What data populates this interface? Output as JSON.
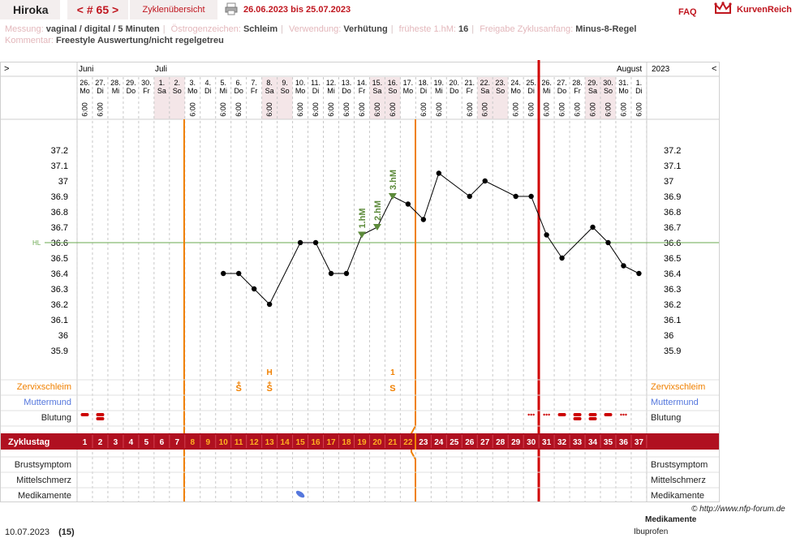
{
  "header": {
    "user": "Hiroka",
    "cycle_nav": "< # 65 >",
    "overview": "Zyklenübersicht",
    "date_range": "26.06.2023 bis 25.07.2023",
    "faq": "FAQ",
    "logo": "KurvenReich"
  },
  "meta": {
    "row1": [
      {
        "label": "Messung:",
        "value": "vaginal / digital / 5 Minuten"
      },
      {
        "label": "Östrogenzeichen:",
        "value": "Schleim"
      },
      {
        "label": "Verwendung:",
        "value": "Verhütung"
      },
      {
        "label": "früheste 1.hM:",
        "value": "16"
      },
      {
        "label": "Freigabe Zyklusanfang:",
        "value": "Minus-8-Regel"
      }
    ],
    "row2": {
      "label": "Kommentar:",
      "value": "Freestyle Auswertung/nicht regelgetreu"
    }
  },
  "chart_data": {
    "type": "line",
    "months": [
      "Juni",
      "Juli",
      "August"
    ],
    "year": "2023",
    "nav_left": ">",
    "nav_right": "<",
    "dates": [
      "26.",
      "27.",
      "28.",
      "29.",
      "30.",
      "1.",
      "2.",
      "3.",
      "4.",
      "5.",
      "6.",
      "7.",
      "8.",
      "9.",
      "10.",
      "11.",
      "12.",
      "13.",
      "14.",
      "15.",
      "16.",
      "17.",
      "18.",
      "19.",
      "20.",
      "21.",
      "22.",
      "23.",
      "24.",
      "25.",
      "26.",
      "27.",
      "28.",
      "29.",
      "30.",
      "31.",
      "1."
    ],
    "weekdays": [
      "Mo",
      "Di",
      "Mi",
      "Do",
      "Fr",
      "Sa",
      "So",
      "Mo",
      "Di",
      "Mi",
      "Do",
      "Fr",
      "Sa",
      "So",
      "Mo",
      "Di",
      "Mi",
      "Do",
      "Fr",
      "Sa",
      "So",
      "Mo",
      "Di",
      "Mi",
      "Do",
      "Fr",
      "Sa",
      "So",
      "Mo",
      "Di",
      "Mi",
      "Do",
      "Fr",
      "Sa",
      "So",
      "Mo",
      "Di"
    ],
    "times": [
      "6:00",
      "6:00",
      "",
      "",
      "",
      "",
      "",
      "6:00",
      "",
      "6:00",
      "6:00",
      "",
      "6:00",
      "",
      "6:00",
      "6:00",
      "6:00",
      "6:00",
      "6:00",
      "6:00",
      "6:00",
      "",
      "6:00",
      "6:00",
      "",
      "6:00",
      "6:00",
      "",
      "6:00",
      "6:00",
      "6:00",
      "6:00",
      "6:00",
      "6:00",
      "6:00",
      "6:00",
      "6:00"
    ],
    "cycle_days": [
      "1",
      "2",
      "3",
      "4",
      "5",
      "6",
      "7",
      "8",
      "9",
      "10",
      "11",
      "12",
      "13",
      "14",
      "15",
      "16",
      "17",
      "18",
      "19",
      "20",
      "21",
      "22",
      "23",
      "24",
      "25",
      "26",
      "27",
      "28",
      "29",
      "30",
      "31",
      "32",
      "33",
      "34",
      "35",
      "36",
      "37"
    ],
    "temperatures": [
      null,
      null,
      null,
      null,
      null,
      null,
      null,
      null,
      null,
      36.4,
      36.4,
      36.3,
      36.2,
      null,
      36.6,
      36.6,
      36.4,
      36.4,
      36.65,
      36.7,
      36.9,
      36.85,
      36.75,
      37.05,
      null,
      36.9,
      37.0,
      null,
      36.9,
      36.9,
      36.65,
      36.5,
      null,
      36.7,
      36.6,
      36.45,
      36.4
    ],
    "y_ticks": [
      "37.2",
      "37.1",
      "37",
      "36.9",
      "36.8",
      "36.7",
      "36.6",
      "36.5",
      "36.4",
      "36.3",
      "36.2",
      "36.1",
      "36",
      "35.9"
    ],
    "ylim": [
      35.9,
      37.2
    ],
    "hl_label": "HL",
    "hl_value": 36.6,
    "hm_markers": [
      {
        "day": 19,
        "label": "1.hM"
      },
      {
        "day": 20,
        "label": "2.hM"
      },
      {
        "day": 21,
        "label": "3.hM"
      }
    ],
    "cervix_marks": [
      {
        "day": 11,
        "top": "+",
        "bottom": "S"
      },
      {
        "day": 13,
        "top": "+",
        "bottom": "S",
        "extra": "H"
      },
      {
        "day": 21,
        "top": "1",
        "bottom": "S"
      }
    ],
    "row_labels": {
      "cervix": "Zervixschleim",
      "muttermund": "Muttermund",
      "blutung": "Blutung",
      "zyklustag": "Zyklustag",
      "brust": "Brustsymptom",
      "mittel": "Mittelschmerz",
      "medikamente": "Medikamente"
    },
    "colors": {
      "accent": "#b01020",
      "orange": "#f08000",
      "grid": "#c8c8c8",
      "hl": "#6aa84f",
      "hm": "#5c8a3a",
      "blue": "#5577dd"
    }
  },
  "footer": {
    "date": "10.07.2023",
    "day": "(15)",
    "copyright": "© http://www.nfp-forum.de",
    "med_heading": "Medikamente",
    "med_value": "Ibuprofen"
  }
}
